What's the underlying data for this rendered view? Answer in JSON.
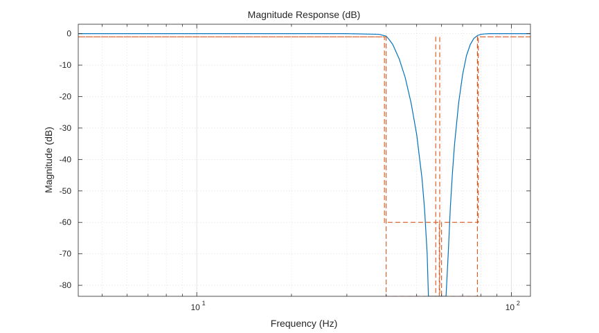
{
  "chart_data": {
    "type": "line",
    "title": "Magnitude Response (dB)",
    "xlabel": "Frequency (Hz)",
    "ylabel": "Magnitude (dB)",
    "x_scale": "log",
    "xlim": [
      4.2,
      115
    ],
    "ylim": [
      -83.5,
      3
    ],
    "grid": true,
    "x_ticks": [
      {
        "base": "10",
        "exp": "1",
        "value": 10
      },
      {
        "base": "10",
        "exp": "2",
        "value": 100
      }
    ],
    "y_ticks": [
      "0",
      "-10",
      "-20",
      "-30",
      "-40",
      "-50",
      "-60",
      "-70",
      "-80"
    ],
    "series": [
      {
        "color": "#0072BD",
        "style": "solid",
        "x": [
          4.2,
          10,
          30,
          38,
          40,
          41,
          42,
          44,
          46,
          48,
          50,
          52,
          53,
          54,
          54.5,
          62,
          63,
          64,
          65,
          66,
          68,
          70,
          72,
          74,
          76,
          78,
          80,
          82,
          85,
          90,
          100,
          115
        ],
        "y": [
          0,
          0,
          0,
          -0.2,
          -0.8,
          -2,
          -3.5,
          -8,
          -14,
          -22,
          -32,
          -46,
          -56,
          -70,
          -83.5,
          -83.5,
          -70,
          -55,
          -44,
          -35,
          -22,
          -13,
          -7,
          -3.5,
          -1.5,
          -0.6,
          -0.2,
          -0.1,
          0,
          0,
          0,
          0
        ]
      },
      {
        "color": "#D95319",
        "style": "dashed",
        "x": [
          4.2,
          39.5,
          39.5,
          59,
          59,
          40,
          40,
          4.2
        ],
        "y": [
          -1,
          -1,
          -60,
          -60,
          -83.5,
          -83.5,
          -1,
          -1
        ]
      },
      {
        "color": "#D95319",
        "style": "dashed",
        "x": [
          115,
          78.5,
          78.5,
          60,
          60,
          78,
          78,
          115
        ],
        "y": [
          -1,
          -1,
          -60,
          -60,
          -83.5,
          -83.5,
          -1,
          -1
        ]
      },
      {
        "color": "#D95319",
        "style": "dashed",
        "x": [
          57.5,
          57.5,
          59.2,
          59.2
        ],
        "y": [
          -1,
          -83.5,
          -83.5,
          -1
        ]
      }
    ]
  }
}
